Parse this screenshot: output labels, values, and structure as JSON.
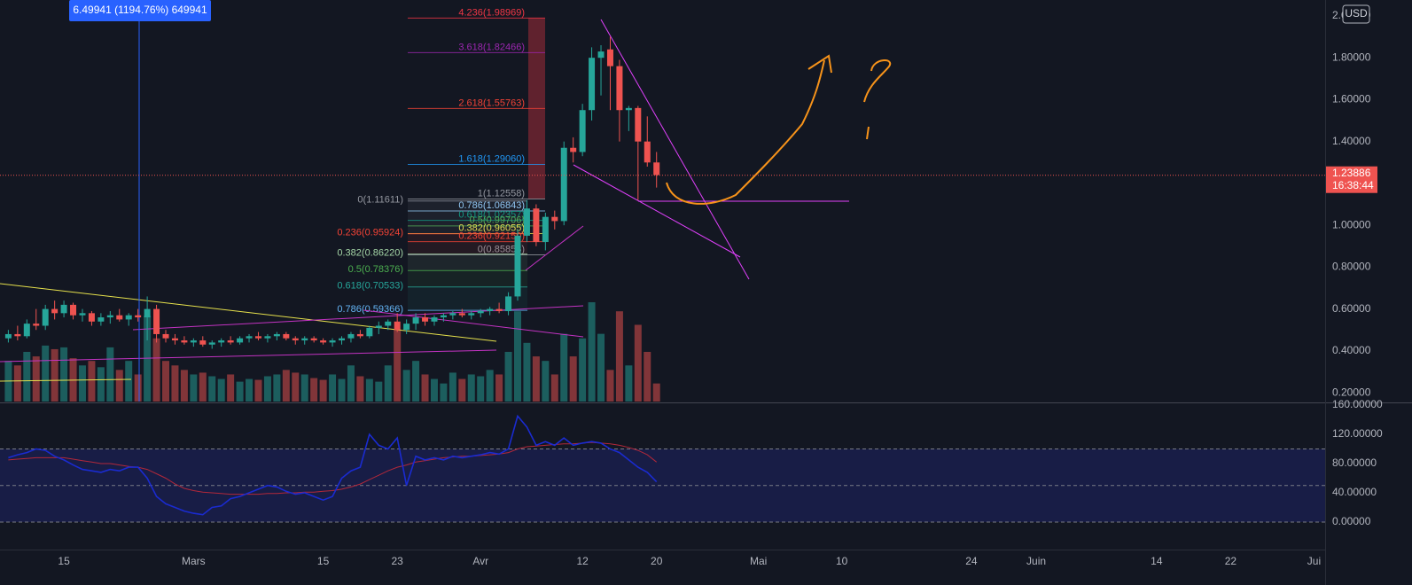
{
  "chart_data": {
    "type": "candlestick",
    "tooltip": "6.49941 (1194.76%) 649941",
    "currency": "USD",
    "last_price": {
      "value": 1.23886,
      "label": "1.23886"
    },
    "countdown": "16:38:44",
    "colors": {
      "up": "#26a69a",
      "down": "#ef5350",
      "rsi": "#1a2bd0",
      "rsi_ma": "#b2283a"
    },
    "xlim": [
      -6.9,
      136.2
    ],
    "xticks": [
      {
        "value": 0,
        "label": "15"
      },
      {
        "value": 14,
        "label": "Mars"
      },
      {
        "value": 28,
        "label": "15"
      },
      {
        "value": 36,
        "label": "23"
      },
      {
        "value": 45,
        "label": "Avr"
      },
      {
        "value": 56,
        "label": "12"
      },
      {
        "value": 64,
        "label": "20"
      },
      {
        "value": 75,
        "label": "Mai"
      },
      {
        "value": 84,
        "label": "10"
      },
      {
        "value": 98,
        "label": "24"
      },
      {
        "value": 105,
        "label": "Juin"
      },
      {
        "value": 118,
        "label": "14"
      },
      {
        "value": 126,
        "label": "22"
      },
      {
        "value": 135,
        "label": "Jui"
      }
    ],
    "ylim": [
      0.158,
      2.076
    ],
    "yticks": [
      {
        "value": 0.2,
        "label": "0.20000"
      },
      {
        "value": 0.4,
        "label": "0.40000"
      },
      {
        "value": 0.6,
        "label": "0.60000"
      },
      {
        "value": 0.8,
        "label": "0.80000"
      },
      {
        "value": 1,
        "label": "1.00000"
      },
      {
        "value": 1.4,
        "label": "1.40000"
      },
      {
        "value": 1.6,
        "label": "1.60000"
      },
      {
        "value": 1.8,
        "label": "1.80000"
      },
      {
        "value": 2,
        "label": "2.00000"
      }
    ],
    "grid": true,
    "candles": [
      {
        "x": -6,
        "open": 0.46,
        "high": 0.5,
        "low": 0.44,
        "close": 0.48,
        "volume": 45,
        "rsi": 88,
        "rsi_ma": 85
      },
      {
        "x": -5,
        "open": 0.48,
        "high": 0.52,
        "low": 0.45,
        "close": 0.47,
        "volume": 40,
        "rsi": 92,
        "rsi_ma": 86
      },
      {
        "x": -4,
        "open": 0.47,
        "high": 0.55,
        "low": 0.46,
        "close": 0.53,
        "volume": 55,
        "rsi": 95,
        "rsi_ma": 87
      },
      {
        "x": -3,
        "open": 0.53,
        "high": 0.6,
        "low": 0.5,
        "close": 0.52,
        "volume": 50,
        "rsi": 100,
        "rsi_ma": 88
      },
      {
        "x": -2,
        "open": 0.52,
        "high": 0.62,
        "low": 0.5,
        "close": 0.6,
        "volume": 62,
        "rsi": 98,
        "rsi_ma": 88
      },
      {
        "x": -1,
        "open": 0.6,
        "high": 0.64,
        "low": 0.55,
        "close": 0.58,
        "volume": 58,
        "rsi": 90,
        "rsi_ma": 88
      },
      {
        "x": 0,
        "open": 0.58,
        "high": 0.64,
        "low": 0.56,
        "close": 0.62,
        "volume": 60,
        "rsi": 85,
        "rsi_ma": 88
      },
      {
        "x": 1,
        "open": 0.62,
        "high": 0.63,
        "low": 0.55,
        "close": 0.57,
        "volume": 48,
        "rsi": 78,
        "rsi_ma": 86
      },
      {
        "x": 2,
        "open": 0.57,
        "high": 0.6,
        "low": 0.54,
        "close": 0.58,
        "volume": 40,
        "rsi": 72,
        "rsi_ma": 84
      },
      {
        "x": 3,
        "open": 0.58,
        "high": 0.59,
        "low": 0.52,
        "close": 0.54,
        "volume": 45,
        "rsi": 70,
        "rsi_ma": 82
      },
      {
        "x": 4,
        "open": 0.54,
        "high": 0.58,
        "low": 0.52,
        "close": 0.56,
        "volume": 38,
        "rsi": 68,
        "rsi_ma": 80
      },
      {
        "x": 5,
        "open": 0.56,
        "high": 0.59,
        "low": 0.53,
        "close": 0.57,
        "volume": 60,
        "rsi": 72,
        "rsi_ma": 80
      },
      {
        "x": 6,
        "open": 0.57,
        "high": 0.6,
        "low": 0.54,
        "close": 0.55,
        "volume": 35,
        "rsi": 70,
        "rsi_ma": 78
      },
      {
        "x": 7,
        "open": 0.55,
        "high": 0.58,
        "low": 0.52,
        "close": 0.57,
        "volume": 45,
        "rsi": 75,
        "rsi_ma": 76
      },
      {
        "x": 8,
        "open": 0.57,
        "high": 0.6,
        "low": 0.54,
        "close": 0.56,
        "volume": 30,
        "rsi": 75,
        "rsi_ma": 75
      },
      {
        "x": 9,
        "open": 0.56,
        "high": 0.66,
        "low": 0.45,
        "close": 0.6,
        "volume": 95,
        "rsi": 60,
        "rsi_ma": 72
      },
      {
        "x": 10,
        "open": 0.6,
        "high": 0.62,
        "low": 0.44,
        "close": 0.48,
        "volume": 70,
        "rsi": 35,
        "rsi_ma": 66
      },
      {
        "x": 11,
        "open": 0.48,
        "high": 0.5,
        "low": 0.44,
        "close": 0.46,
        "volume": 45,
        "rsi": 25,
        "rsi_ma": 60
      },
      {
        "x": 12,
        "open": 0.46,
        "high": 0.48,
        "low": 0.43,
        "close": 0.45,
        "volume": 40,
        "rsi": 20,
        "rsi_ma": 52
      },
      {
        "x": 13,
        "open": 0.45,
        "high": 0.47,
        "low": 0.43,
        "close": 0.44,
        "volume": 35,
        "rsi": 15,
        "rsi_ma": 46
      },
      {
        "x": 14,
        "open": 0.44,
        "high": 0.46,
        "low": 0.42,
        "close": 0.45,
        "volume": 30,
        "rsi": 12,
        "rsi_ma": 43
      },
      {
        "x": 15,
        "open": 0.45,
        "high": 0.47,
        "low": 0.42,
        "close": 0.43,
        "volume": 32,
        "rsi": 10,
        "rsi_ma": 41
      },
      {
        "x": 16,
        "open": 0.43,
        "high": 0.45,
        "low": 0.41,
        "close": 0.44,
        "volume": 28,
        "rsi": 20,
        "rsi_ma": 40
      },
      {
        "x": 17,
        "open": 0.44,
        "high": 0.46,
        "low": 0.42,
        "close": 0.45,
        "volume": 25,
        "rsi": 22,
        "rsi_ma": 39
      },
      {
        "x": 18,
        "open": 0.45,
        "high": 0.47,
        "low": 0.43,
        "close": 0.44,
        "volume": 30,
        "rsi": 32,
        "rsi_ma": 38
      },
      {
        "x": 19,
        "open": 0.44,
        "high": 0.47,
        "low": 0.43,
        "close": 0.46,
        "volume": 22,
        "rsi": 35,
        "rsi_ma": 38
      },
      {
        "x": 20,
        "open": 0.46,
        "high": 0.48,
        "low": 0.44,
        "close": 0.47,
        "volume": 25,
        "rsi": 40,
        "rsi_ma": 38
      },
      {
        "x": 21,
        "open": 0.47,
        "high": 0.49,
        "low": 0.45,
        "close": 0.46,
        "volume": 24,
        "rsi": 45,
        "rsi_ma": 38
      },
      {
        "x": 22,
        "open": 0.46,
        "high": 0.48,
        "low": 0.44,
        "close": 0.47,
        "volume": 28,
        "rsi": 50,
        "rsi_ma": 39
      },
      {
        "x": 23,
        "open": 0.47,
        "high": 0.49,
        "low": 0.45,
        "close": 0.48,
        "volume": 30,
        "rsi": 48,
        "rsi_ma": 39
      },
      {
        "x": 24,
        "open": 0.48,
        "high": 0.49,
        "low": 0.45,
        "close": 0.46,
        "volume": 35,
        "rsi": 42,
        "rsi_ma": 40
      },
      {
        "x": 25,
        "open": 0.46,
        "high": 0.47,
        "low": 0.43,
        "close": 0.45,
        "volume": 32,
        "rsi": 38,
        "rsi_ma": 40
      },
      {
        "x": 26,
        "open": 0.45,
        "high": 0.47,
        "low": 0.43,
        "close": 0.46,
        "volume": 30,
        "rsi": 40,
        "rsi_ma": 41
      },
      {
        "x": 27,
        "open": 0.46,
        "high": 0.47,
        "low": 0.44,
        "close": 0.45,
        "volume": 26,
        "rsi": 35,
        "rsi_ma": 41
      },
      {
        "x": 28,
        "open": 0.45,
        "high": 0.46,
        "low": 0.43,
        "close": 0.44,
        "volume": 24,
        "rsi": 30,
        "rsi_ma": 42
      },
      {
        "x": 29,
        "open": 0.44,
        "high": 0.46,
        "low": 0.42,
        "close": 0.45,
        "volume": 30,
        "rsi": 35,
        "rsi_ma": 43
      },
      {
        "x": 30,
        "open": 0.45,
        "high": 0.47,
        "low": 0.43,
        "close": 0.46,
        "volume": 25,
        "rsi": 60,
        "rsi_ma": 45
      },
      {
        "x": 31,
        "open": 0.46,
        "high": 0.49,
        "low": 0.44,
        "close": 0.48,
        "volume": 40,
        "rsi": 70,
        "rsi_ma": 48
      },
      {
        "x": 32,
        "open": 0.48,
        "high": 0.5,
        "low": 0.46,
        "close": 0.47,
        "volume": 28,
        "rsi": 75,
        "rsi_ma": 52
      },
      {
        "x": 33,
        "open": 0.47,
        "high": 0.52,
        "low": 0.46,
        "close": 0.51,
        "volume": 25,
        "rsi": 120,
        "rsi_ma": 58
      },
      {
        "x": 34,
        "open": 0.51,
        "high": 0.54,
        "low": 0.48,
        "close": 0.52,
        "volume": 22,
        "rsi": 105,
        "rsi_ma": 64
      },
      {
        "x": 35,
        "open": 0.52,
        "high": 0.55,
        "low": 0.5,
        "close": 0.54,
        "volume": 40,
        "rsi": 100,
        "rsi_ma": 70
      },
      {
        "x": 36,
        "open": 0.54,
        "high": 0.58,
        "low": 0.49,
        "close": 0.5,
        "volume": 80,
        "rsi": 115,
        "rsi_ma": 75
      },
      {
        "x": 37,
        "open": 0.5,
        "high": 0.55,
        "low": 0.48,
        "close": 0.53,
        "volume": 35,
        "rsi": 50,
        "rsi_ma": 78
      },
      {
        "x": 38,
        "open": 0.53,
        "high": 0.58,
        "low": 0.5,
        "close": 0.56,
        "volume": 45,
        "rsi": 90,
        "rsi_ma": 82
      },
      {
        "x": 39,
        "open": 0.56,
        "high": 0.58,
        "low": 0.52,
        "close": 0.54,
        "volume": 30,
        "rsi": 85,
        "rsi_ma": 84
      },
      {
        "x": 40,
        "open": 0.54,
        "high": 0.57,
        "low": 0.52,
        "close": 0.56,
        "volume": 25,
        "rsi": 88,
        "rsi_ma": 86
      },
      {
        "x": 41,
        "open": 0.56,
        "high": 0.58,
        "low": 0.54,
        "close": 0.57,
        "volume": 20,
        "rsi": 85,
        "rsi_ma": 88
      },
      {
        "x": 42,
        "open": 0.57,
        "high": 0.59,
        "low": 0.55,
        "close": 0.58,
        "volume": 32,
        "rsi": 90,
        "rsi_ma": 89
      },
      {
        "x": 43,
        "open": 0.58,
        "high": 0.6,
        "low": 0.56,
        "close": 0.57,
        "volume": 25,
        "rsi": 88,
        "rsi_ma": 90
      },
      {
        "x": 44,
        "open": 0.57,
        "high": 0.59,
        "low": 0.55,
        "close": 0.58,
        "volume": 30,
        "rsi": 90,
        "rsi_ma": 90
      },
      {
        "x": 45,
        "open": 0.58,
        "high": 0.6,
        "low": 0.56,
        "close": 0.59,
        "volume": 28,
        "rsi": 92,
        "rsi_ma": 91
      },
      {
        "x": 46,
        "open": 0.59,
        "high": 0.61,
        "low": 0.57,
        "close": 0.6,
        "volume": 35,
        "rsi": 95,
        "rsi_ma": 92
      },
      {
        "x": 47,
        "open": 0.6,
        "high": 0.63,
        "low": 0.58,
        "close": 0.59,
        "volume": 30,
        "rsi": 93,
        "rsi_ma": 93
      },
      {
        "x": 48,
        "open": 0.59,
        "high": 0.68,
        "low": 0.57,
        "close": 0.66,
        "volume": 55,
        "rsi": 100,
        "rsi_ma": 95
      },
      {
        "x": 49,
        "open": 0.66,
        "high": 0.98,
        "low": 0.64,
        "close": 0.95,
        "volume": 100,
        "rsi": 145,
        "rsi_ma": 100
      },
      {
        "x": 50,
        "open": 0.95,
        "high": 1.12,
        "low": 0.92,
        "close": 1.08,
        "volume": 65,
        "rsi": 130,
        "rsi_ma": 103
      },
      {
        "x": 51,
        "open": 1.08,
        "high": 1.1,
        "low": 0.9,
        "close": 0.92,
        "volume": 50,
        "rsi": 105,
        "rsi_ma": 104
      },
      {
        "x": 52,
        "open": 0.92,
        "high": 1.06,
        "low": 0.88,
        "close": 1.04,
        "volume": 45,
        "rsi": 110,
        "rsi_ma": 105
      },
      {
        "x": 53,
        "open": 1.04,
        "high": 1.07,
        "low": 0.98,
        "close": 1.02,
        "volume": 30,
        "rsi": 105,
        "rsi_ma": 106
      },
      {
        "x": 54,
        "open": 1.02,
        "high": 1.4,
        "low": 1,
        "close": 1.37,
        "volume": 75,
        "rsi": 115,
        "rsi_ma": 107
      },
      {
        "x": 55,
        "open": 1.37,
        "high": 1.42,
        "low": 1.3,
        "close": 1.35,
        "volume": 50,
        "rsi": 105,
        "rsi_ma": 107
      },
      {
        "x": 56,
        "open": 1.35,
        "high": 1.58,
        "low": 1.33,
        "close": 1.55,
        "volume": 70,
        "rsi": 108,
        "rsi_ma": 108
      },
      {
        "x": 57,
        "open": 1.55,
        "high": 1.85,
        "low": 1.5,
        "close": 1.8,
        "volume": 110,
        "rsi": 110,
        "rsi_ma": 109
      },
      {
        "x": 58,
        "open": 1.8,
        "high": 1.86,
        "low": 1.62,
        "close": 1.83,
        "volume": 75,
        "rsi": 108,
        "rsi_ma": 108
      },
      {
        "x": 59,
        "open": 1.84,
        "high": 1.9,
        "low": 1.55,
        "close": 1.76,
        "volume": 35,
        "rsi": 100,
        "rsi_ma": 107
      },
      {
        "x": 60,
        "open": 1.76,
        "high": 1.79,
        "low": 1.4,
        "close": 1.55,
        "volume": 100,
        "rsi": 95,
        "rsi_ma": 105
      },
      {
        "x": 61,
        "open": 1.55,
        "high": 1.57,
        "low": 1.45,
        "close": 1.56,
        "volume": 40,
        "rsi": 85,
        "rsi_ma": 102
      },
      {
        "x": 62,
        "open": 1.56,
        "high": 1.57,
        "low": 1.12,
        "close": 1.4,
        "volume": 85,
        "rsi": 75,
        "rsi_ma": 98
      },
      {
        "x": 63,
        "open": 1.4,
        "high": 1.52,
        "low": 1.28,
        "close": 1.3,
        "volume": 55,
        "rsi": 68,
        "rsi_ma": 92
      },
      {
        "x": 64,
        "open": 1.3,
        "high": 1.35,
        "low": 1.18,
        "close": 1.24,
        "volume": 20,
        "rsi": 55,
        "rsi_ma": 82
      }
    ],
    "fib_extension": [
      {
        "label": "4.236(1.98969)",
        "value": 1.98969,
        "color": "#f23645"
      },
      {
        "label": "3.618(1.82466)",
        "value": 1.82466,
        "color": "#9c27b0"
      },
      {
        "label": "2.618(1.55763)",
        "value": 1.55763,
        "color": "#f44336"
      },
      {
        "label": "1.618(1.29060)",
        "value": 1.2906,
        "color": "#2196f3"
      },
      {
        "label": "1(1.12558)",
        "value": 1.12558,
        "color": "#9598a1"
      },
      {
        "label": "0.786(1.06843)",
        "value": 1.06843,
        "color": "#90caf9"
      },
      {
        "label": "0.618(1.02357)",
        "value": 1.02357,
        "color": "#089981"
      },
      {
        "label": "0.5(0.99706)",
        "value": 0.99706,
        "color": "#4caf50"
      },
      {
        "label": "0.382(0.96055)",
        "value": 0.96055,
        "color": "#e6e14c"
      },
      {
        "label": "0.236(0.92150)",
        "value": 0.9215,
        "color": "#f44336"
      },
      {
        "label": "0(0.85853)",
        "value": 0.85853,
        "color": "#9598a1"
      }
    ],
    "fib_retracement": [
      {
        "label": "0(1.11611)",
        "value": 1.11611,
        "color": "#9598a1"
      },
      {
        "label": "0.236(0.95924)",
        "value": 0.95924,
        "color": "#f44336"
      },
      {
        "label": "0.382(0.86220)",
        "value": 0.8622,
        "color": "#a5d6a7"
      },
      {
        "label": "0.5(0.78376)",
        "value": 0.78376,
        "color": "#4caf50"
      },
      {
        "label": "0.618(0.70533)",
        "value": 0.70533,
        "color": "#26a69a"
      },
      {
        "label": "0.786(0.59366)",
        "value": 0.59366,
        "color": "#64b5f6"
      }
    ],
    "indicator": {
      "ylim": [
        -37.6,
        162.4
      ],
      "yticks": [
        {
          "value": 0,
          "label": "0.00000"
        },
        {
          "value": 40,
          "label": "40.00000"
        },
        {
          "value": 80,
          "label": "80.00000"
        },
        {
          "value": 120,
          "label": "120.00000"
        },
        {
          "value": 160,
          "label": "160.00000"
        }
      ],
      "levels": [
        0,
        50,
        100
      ]
    }
  }
}
